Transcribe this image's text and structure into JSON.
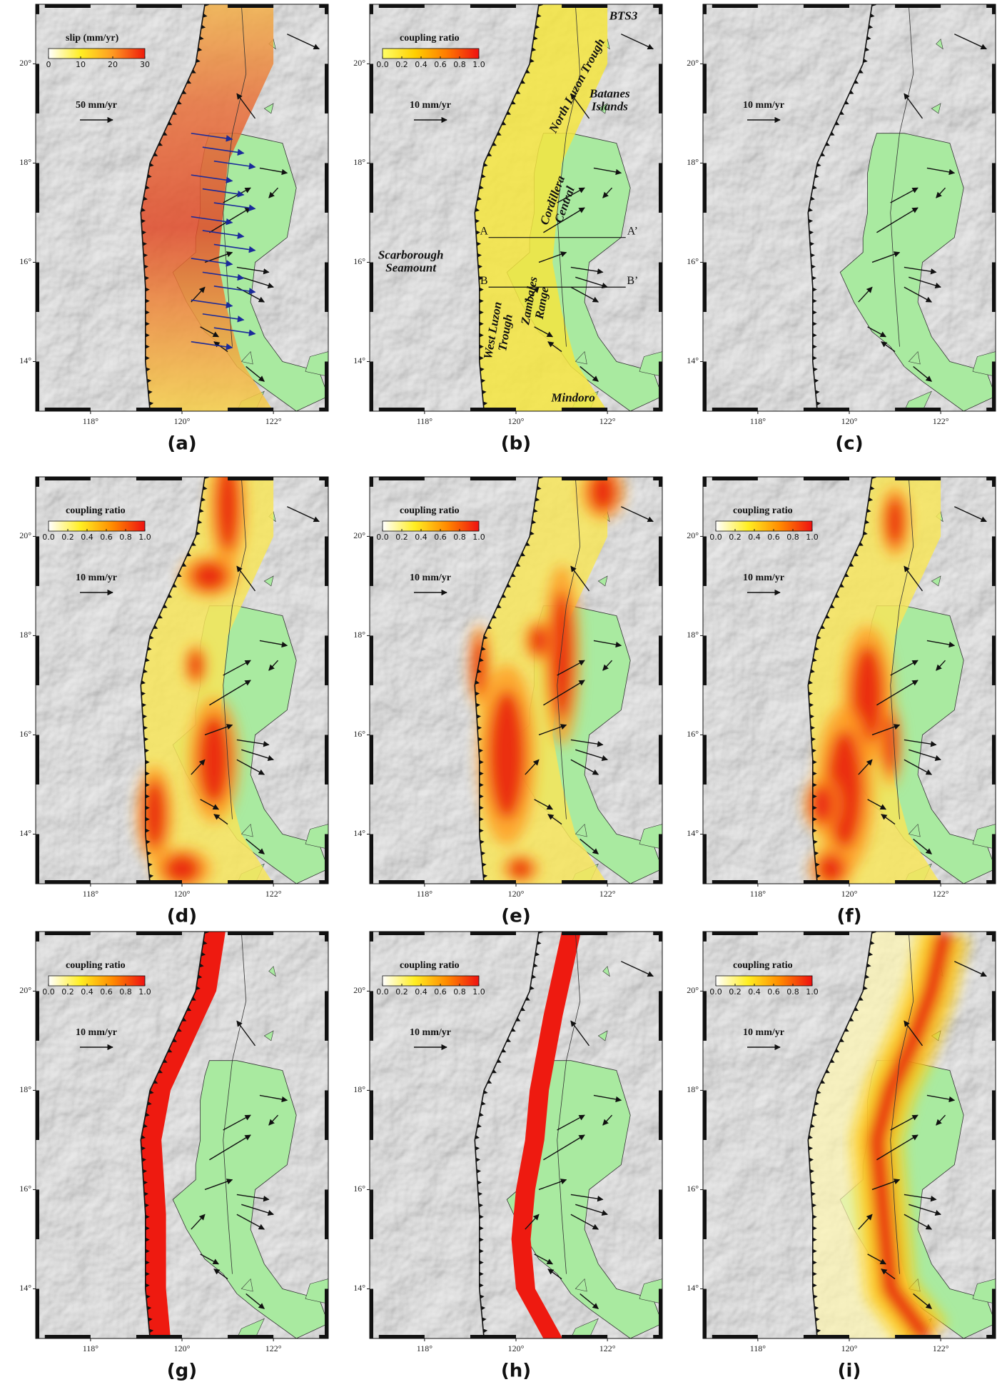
{
  "map": {
    "xlim": [
      116.8,
      123.2
    ],
    "ylim": [
      13,
      21.2
    ],
    "xticks": [
      {
        "value": 118,
        "label": "118°"
      },
      {
        "value": 120,
        "label": "120°"
      },
      {
        "value": 122,
        "label": "122°"
      }
    ],
    "yticks": [
      {
        "value": 14,
        "label": "14°"
      },
      {
        "value": 16,
        "label": "16°"
      },
      {
        "value": 18,
        "label": "18°"
      },
      {
        "value": 20,
        "label": "20°"
      }
    ]
  },
  "panels": [
    {
      "label": "(a)",
      "legend_title": "slip (mm/yr)",
      "colorbar": {
        "range": [
          0,
          30
        ],
        "ticks": [
          0,
          10,
          20,
          30
        ],
        "colors": [
          "#ffffff",
          "#ffee22",
          "#ff9a22",
          "#ee1a0a"
        ]
      },
      "scale_label": "50 mm/yr"
    },
    {
      "label": "(b)",
      "legend_title": "coupling ratio",
      "colorbar": {
        "range": [
          0,
          1
        ],
        "ticks": [
          {
            "value": 0,
            "label": "0.0"
          },
          0.2,
          0.4,
          0.6,
          0.8,
          {
            "value": 1,
            "label": "1.0"
          }
        ],
        "colors": [
          "#ffff66",
          "#ffd000",
          "#ff7a00",
          "#ee1111"
        ]
      },
      "scale_label": "10 mm/yr",
      "annotations": [
        [
          "BTS3"
        ],
        [
          "North Luzon Trough"
        ],
        [
          "Batanes",
          "Islands"
        ],
        [
          "Cordillera",
          "Central"
        ],
        [
          "A"
        ],
        [
          "A’"
        ],
        [
          "B"
        ],
        [
          "B’"
        ],
        [
          "Scarborough",
          "Seamount"
        ],
        [
          "West Luzon",
          "Trough"
        ],
        [
          "Zambales",
          "Range"
        ],
        [
          "Mindoro"
        ]
      ]
    },
    {
      "label": "(c)",
      "scale_label": "10 mm/yr"
    },
    {
      "label": "(d)",
      "legend_title": "coupling ratio",
      "colorbar": {
        "range": [
          0,
          1
        ],
        "ticks": [
          {
            "value": 0,
            "label": "0.0"
          },
          0.2,
          0.4,
          0.6,
          0.8,
          {
            "value": 1,
            "label": "1.0"
          }
        ],
        "colors": [
          "#ffffff",
          "#ffee22",
          "#ff8a00",
          "#ee1111"
        ]
      },
      "scale_label": "10 mm/yr"
    },
    {
      "label": "(e)",
      "legend_title": "coupling ratio",
      "colorbar": {
        "range": [
          0,
          1
        ],
        "ticks": [
          {
            "value": 0,
            "label": "0.0"
          },
          0.2,
          0.4,
          0.6,
          0.8,
          {
            "value": 1,
            "label": "1.0"
          }
        ],
        "colors": [
          "#ffffff",
          "#ffee22",
          "#ff8a00",
          "#ee1111"
        ]
      },
      "scale_label": "10 mm/yr"
    },
    {
      "label": "(f)",
      "legend_title": "coupling ratio",
      "colorbar": {
        "range": [
          0,
          1
        ],
        "ticks": [
          {
            "value": 0,
            "label": "0.0"
          },
          0.2,
          0.4,
          0.6,
          0.8,
          {
            "value": 1,
            "label": "1.0"
          }
        ],
        "colors": [
          "#ffffff",
          "#ffee22",
          "#ff8a00",
          "#ee1111"
        ]
      },
      "scale_label": "10 mm/yr"
    },
    {
      "label": "(g)",
      "legend_title": "coupling ratio",
      "colorbar": {
        "range": [
          0,
          1
        ],
        "ticks": [
          {
            "value": 0,
            "label": "0.0"
          },
          0.2,
          0.4,
          0.6,
          0.8,
          {
            "value": 1,
            "label": "1.0"
          }
        ],
        "colors": [
          "#ffffff",
          "#ffee22",
          "#ff8a00",
          "#ee1111"
        ]
      },
      "scale_label": "10 mm/yr"
    },
    {
      "label": "(h)",
      "legend_title": "coupling ratio",
      "colorbar": {
        "range": [
          0,
          1
        ],
        "ticks": [
          {
            "value": 0,
            "label": "0.0"
          },
          0.2,
          0.4,
          0.6,
          0.8,
          {
            "value": 1,
            "label": "1.0"
          }
        ],
        "colors": [
          "#ffffff",
          "#ffee22",
          "#ff8a00",
          "#ee1111"
        ]
      },
      "scale_label": "10 mm/yr"
    },
    {
      "label": "(i)",
      "legend_title": "coupling ratio",
      "colorbar": {
        "range": [
          0,
          1
        ],
        "ticks": [
          {
            "value": 0,
            "label": "0.0"
          },
          0.2,
          0.4,
          0.6,
          0.8,
          {
            "value": 1,
            "label": "1.0"
          }
        ],
        "colors": [
          "#ffffff",
          "#ffee22",
          "#ff8a00",
          "#ee1111"
        ]
      },
      "scale_label": "10 mm/yr"
    }
  ]
}
